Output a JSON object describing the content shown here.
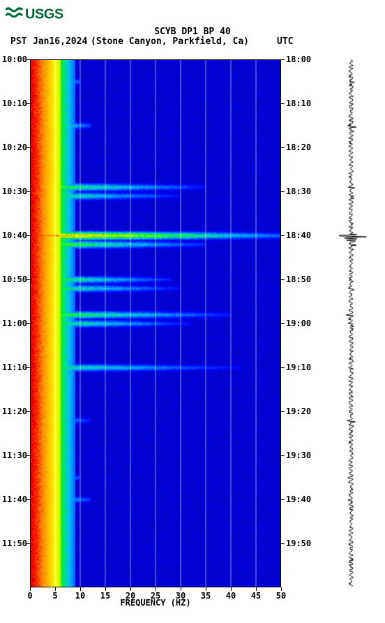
{
  "logo_text": "USGS",
  "title": "SCYB DP1 BP 40",
  "timezone_left": "PST",
  "date": "Jan16,2024",
  "location": "(Stone Canyon, Parkfield, Ca)",
  "timezone_right": "UTC",
  "xaxis_title": "FREQUENCY (HZ)",
  "spectrogram": {
    "type": "spectrogram",
    "xlim": [
      0,
      50
    ],
    "xtick_step": 5,
    "xticks": [
      0,
      5,
      10,
      15,
      20,
      25,
      30,
      35,
      40,
      45,
      50
    ],
    "time_start_minutes": 0,
    "time_end_minutes": 120,
    "left_time_labels": [
      "10:00",
      "10:10",
      "10:20",
      "10:30",
      "10:40",
      "10:50",
      "11:00",
      "11:10",
      "11:20",
      "11:30",
      "11:40",
      "11:50"
    ],
    "right_time_labels": [
      "18:00",
      "18:10",
      "18:20",
      "18:30",
      "18:40",
      "18:50",
      "19:00",
      "19:10",
      "19:20",
      "19:30",
      "19:40",
      "19:50"
    ],
    "tick_minutes": [
      0,
      10,
      20,
      30,
      40,
      50,
      60,
      70,
      80,
      90,
      100,
      110
    ],
    "colormap": {
      "stops": [
        {
          "v": 0.0,
          "c": "#00008b"
        },
        {
          "v": 0.15,
          "c": "#0000ff"
        },
        {
          "v": 0.35,
          "c": "#00bfff"
        },
        {
          "v": 0.5,
          "c": "#00ff00"
        },
        {
          "v": 0.65,
          "c": "#ffff00"
        },
        {
          "v": 0.8,
          "c": "#ff8c00"
        },
        {
          "v": 0.9,
          "c": "#ff0000"
        },
        {
          "v": 1.0,
          "c": "#8b0000"
        }
      ]
    },
    "background_color": "#0000ff",
    "low_freq_band": {
      "freq_max_hz": 6,
      "intensity_min": 0.6,
      "intensity_max": 1.0
    },
    "events": [
      {
        "time_min": 5,
        "freq_extent_hz": 10,
        "amplitude": 0.9,
        "seismo_amp": 0.15
      },
      {
        "time_min": 15,
        "freq_extent_hz": 12,
        "amplitude": 0.85,
        "seismo_amp": 0.3
      },
      {
        "time_min": 29,
        "freq_extent_hz": 35,
        "amplitude": 0.7,
        "seismo_amp": 0.15
      },
      {
        "time_min": 31,
        "freq_extent_hz": 30,
        "amplitude": 0.65,
        "seismo_amp": 0.12
      },
      {
        "time_min": 40,
        "freq_extent_hz": 50,
        "amplitude": 1.0,
        "seismo_amp": 1.0
      },
      {
        "time_min": 42,
        "freq_extent_hz": 35,
        "amplitude": 0.75,
        "seismo_amp": 0.25
      },
      {
        "time_min": 50,
        "freq_extent_hz": 28,
        "amplitude": 0.7,
        "seismo_amp": 0.12
      },
      {
        "time_min": 52,
        "freq_extent_hz": 30,
        "amplitude": 0.65,
        "seismo_amp": 0.12
      },
      {
        "time_min": 58,
        "freq_extent_hz": 40,
        "amplitude": 0.7,
        "seismo_amp": 0.15
      },
      {
        "time_min": 60,
        "freq_extent_hz": 32,
        "amplitude": 0.65,
        "seismo_amp": 0.12
      },
      {
        "time_min": 70,
        "freq_extent_hz": 42,
        "amplitude": 0.6,
        "seismo_amp": 0.12
      },
      {
        "time_min": 82,
        "freq_extent_hz": 12,
        "amplitude": 0.7,
        "seismo_amp": 0.2
      },
      {
        "time_min": 95,
        "freq_extent_hz": 10,
        "amplitude": 0.8,
        "seismo_amp": 0.1
      },
      {
        "time_min": 100,
        "freq_extent_hz": 12,
        "amplitude": 0.75,
        "seismo_amp": 0.08
      }
    ],
    "grid_color": "#ffffff"
  },
  "seismogram": {
    "type": "waveform",
    "trace_color": "#000000",
    "baseline_noise": 0.05
  },
  "colors": {
    "logo": "#006837",
    "text": "#000000",
    "background": "#ffffff"
  },
  "font": {
    "family": "monospace",
    "title_size_pt": 13,
    "label_size_pt": 12,
    "weight": "bold"
  }
}
